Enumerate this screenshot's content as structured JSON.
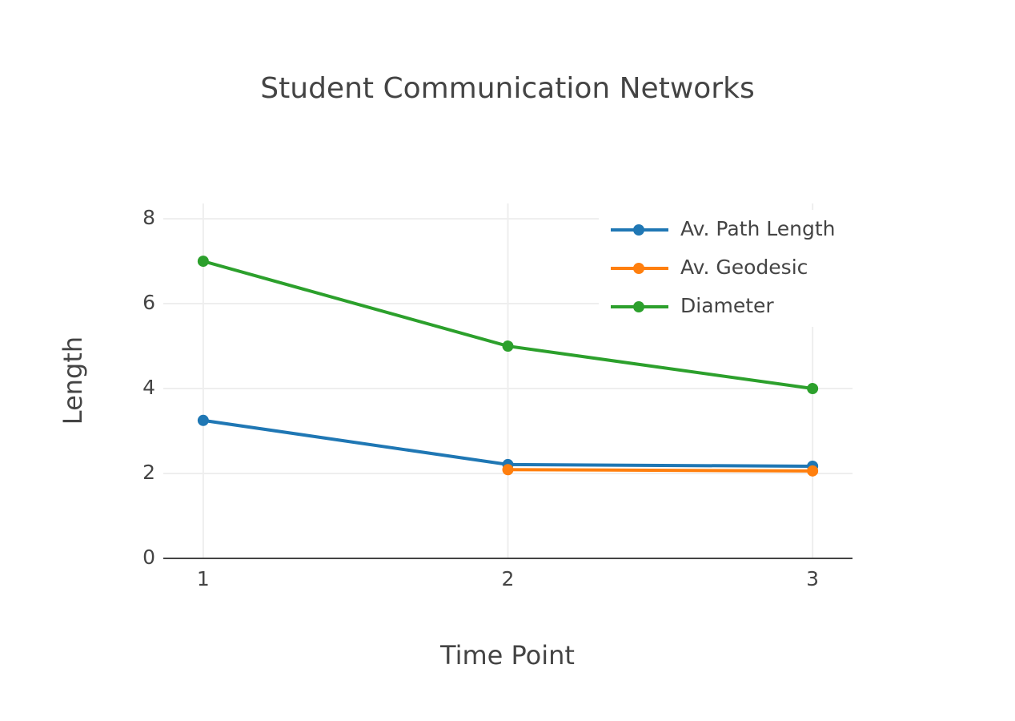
{
  "chart_data": {
    "type": "line",
    "title": "Student Communication Networks",
    "x_label": "Time Point",
    "y_label": "Length",
    "x": [
      1,
      2,
      3
    ],
    "series": [
      {
        "name": "Av. Path Length",
        "color": "#1f77b4",
        "values": [
          3.25,
          2.21,
          2.17
        ]
      },
      {
        "name": "Av. Geodesic",
        "color": "#ff7f0e",
        "values": [
          null,
          2.09,
          2.06
        ]
      },
      {
        "name": "Diameter",
        "color": "#2ca02c",
        "values": [
          7,
          5,
          4
        ]
      }
    ],
    "xlim": [
      0.869,
      3.131
    ],
    "xticks": [
      1,
      2,
      3
    ],
    "ylim": [
      0,
      8.36
    ],
    "yticks": [
      0,
      2,
      4,
      6,
      8
    ],
    "grid": true,
    "legend": "top-right"
  }
}
